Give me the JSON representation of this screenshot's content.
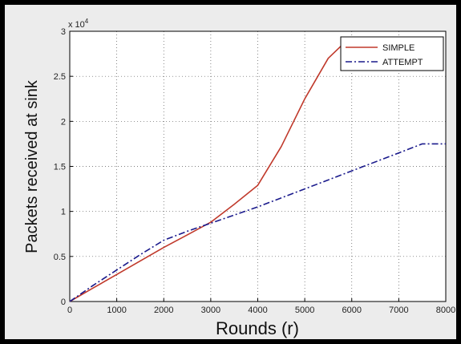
{
  "chart_data": {
    "type": "line",
    "xlabel": "Rounds (r)",
    "ylabel": "Packets received at sink",
    "y_multiplier_label": "x 10",
    "y_multiplier_exponent": "4",
    "xlim": [
      0,
      8000
    ],
    "ylim": [
      0,
      3
    ],
    "x_ticks": [
      0,
      1000,
      2000,
      3000,
      4000,
      5000,
      6000,
      7000,
      8000
    ],
    "x_tick_labels": [
      "0",
      "1000",
      "2000",
      "3000",
      "4000",
      "5000",
      "6000",
      "7000",
      "8000"
    ],
    "y_ticks": [
      0,
      0.5,
      1,
      1.5,
      2,
      2.5,
      3
    ],
    "y_tick_labels": [
      "0",
      "0.5",
      "1",
      "1.5",
      "2",
      "2.5",
      "3"
    ],
    "grid": true,
    "legend_position": "top-right",
    "series": [
      {
        "name": "SIMPLE",
        "color": "#c0392b",
        "line_style": "solid",
        "x": [
          0,
          500,
          1000,
          1500,
          2000,
          2500,
          3000,
          3500,
          4000,
          4500,
          5000,
          5500,
          5800
        ],
        "y": [
          0,
          0.15,
          0.3,
          0.45,
          0.6,
          0.74,
          0.88,
          1.08,
          1.29,
          1.72,
          2.25,
          2.7,
          2.85
        ]
      },
      {
        "name": "ATTEMPT",
        "color": "#1a1a8c",
        "line_style": "dashdot",
        "x": [
          0,
          500,
          1000,
          1500,
          2000,
          2500,
          3000,
          4000,
          5000,
          6000,
          7000,
          7500,
          8000
        ],
        "y": [
          0,
          0.18,
          0.35,
          0.52,
          0.68,
          0.78,
          0.87,
          1.05,
          1.25,
          1.45,
          1.65,
          1.75,
          1.75
        ]
      }
    ]
  }
}
